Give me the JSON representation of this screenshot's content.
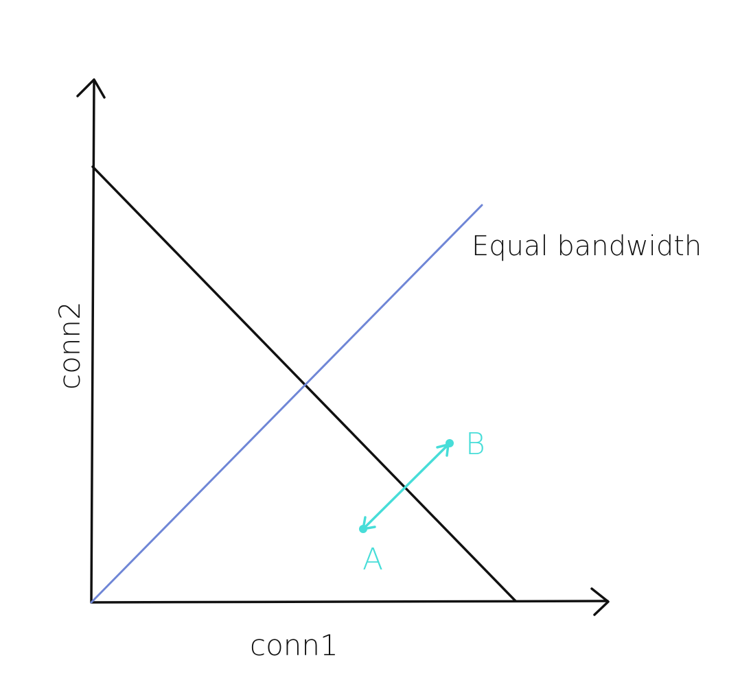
{
  "axes": {
    "x_label": "conn1",
    "y_label": "conn2"
  },
  "lines": {
    "equal_bandwidth_label": "Equal bandwidth"
  },
  "points": {
    "a_label": "A",
    "b_label": "B"
  },
  "colors": {
    "axis": "#111111",
    "capacity_line": "#111111",
    "equal_bandwidth_line": "#6f86d6",
    "trajectory": "#47ddd8"
  }
}
